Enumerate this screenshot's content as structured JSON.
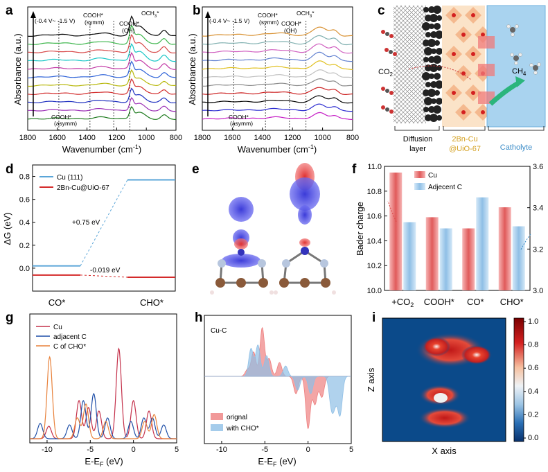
{
  "panel_labels": [
    "a",
    "b",
    "c",
    "d",
    "e",
    "f",
    "g",
    "h",
    "i"
  ],
  "chart_data": [
    {
      "panel": "a",
      "type": "line",
      "xlabel": "Wavenumber (cm",
      "xlabel_sup": "-1",
      "xlabel_end": ")",
      "ylabel": "Absorbance (a.u.)",
      "xlim": [
        1800,
        800
      ],
      "xticks": [
        1800,
        1600,
        1400,
        1200,
        1000,
        800
      ],
      "annotations": {
        "range": "(-0.4 V~ -1.5 V)",
        "cooh_symm_1": "COOH*",
        "cooh_symm_2": "(symm)",
        "cooh_oh_1": "COOH*",
        "cooh_oh_2": "(OH)",
        "och3_1": "OCH",
        "och3_sub": "3",
        "och3_2": "*",
        "cooh_asymm_1": "COOH*",
        "cooh_asymm_2": "(asymm)"
      },
      "marker_lines": [
        1590,
        1380,
        1220,
        1110
      ],
      "series_count": 11,
      "series_colors": [
        "#1d7a1d",
        "#9b2fb5",
        "#1e2fc0",
        "#d22c2c",
        "#b7b70a",
        "#2f63d8",
        "#c23aa6",
        "#18c6c6",
        "#d84a4a",
        "#3bb54a",
        "#000000"
      ]
    },
    {
      "panel": "b",
      "type": "line",
      "xlabel": "Wavenumber (cm",
      "xlabel_sup": "-1",
      "xlabel_end": ")",
      "ylabel": "Absorbance (a.u.)",
      "xlim": [
        1800,
        800
      ],
      "xticks": [
        1800,
        1600,
        1400,
        1200,
        1000,
        800
      ],
      "annotations": {
        "range": "(-0.4 V~ -1.5 V)",
        "cooh_symm_1": "COOH*",
        "cooh_symm_2": "(symm)",
        "cooh_oh_1": "COOH*",
        "cooh_oh_2": "(OH)",
        "och3_1": "OCH",
        "och3_sub": "3",
        "och3_2": "*",
        "cooh_asymm_1": "COOH*",
        "cooh_asymm_2": "(asymm)"
      },
      "marker_lines": [
        1590,
        1380,
        1220,
        1110
      ],
      "series_count": 11,
      "series_colors": [
        "#c51dc5",
        "#2a2ad0",
        "#000000",
        "#cc2020",
        "#8a8a8a",
        "#c0c0c0",
        "#e0c020",
        "#6080d0",
        "#d060c0",
        "#80b0b0",
        "#d89030"
      ]
    },
    {
      "panel": "d",
      "type": "line",
      "ylabel": "ΔG (eV)",
      "ylim": [
        -0.2,
        0.9
      ],
      "yticks": [
        0.0,
        0.2,
        0.4,
        0.6,
        0.8
      ],
      "categories": [
        "CO*",
        "CHO*"
      ],
      "series": [
        {
          "name": "Cu (111)",
          "values": [
            0.02,
            0.77
          ],
          "color": "#5aa5d8"
        },
        {
          "name": "2Bn-Cu@UiO-67",
          "values": [
            -0.06,
            -0.079
          ],
          "color": "#d42a2a"
        }
      ],
      "annotations": {
        "up": "+0.75 eV",
        "down": "-0.019 eV"
      }
    },
    {
      "panel": "f",
      "type": "bar",
      "ylabel": "Bader charge",
      "ylim_left": [
        10.0,
        11.0
      ],
      "yticks_left": [
        10.0,
        10.2,
        10.4,
        10.6,
        10.8,
        11.0
      ],
      "ylim_right": [
        3.0,
        3.6
      ],
      "yticks_right": [
        3.0,
        3.2,
        3.4,
        3.6
      ],
      "categories": [
        "+CO",
        "COOH*",
        "CO*",
        "CHO*"
      ],
      "category_sub": [
        "2",
        "",
        "",
        ""
      ],
      "series": [
        {
          "name": "Cu",
          "values": [
            10.95,
            10.59,
            10.5,
            10.67
          ],
          "color": "#e06a6a",
          "axis": "left"
        },
        {
          "name": "Adjecent C",
          "values": [
            3.33,
            3.3,
            3.45,
            3.31
          ],
          "color": "#8fc0e8",
          "axis": "right"
        }
      ]
    },
    {
      "panel": "g",
      "type": "line",
      "xlabel": "E-E",
      "xlabel_sub": "F",
      "xlabel_end": " (eV)",
      "xlim": [
        -12,
        5
      ],
      "xticks": [
        -10,
        -5,
        0,
        5
      ],
      "series": [
        {
          "name": "Cu",
          "color": "#c4304a"
        },
        {
          "name": "adjacent C",
          "color": "#1f4fa8"
        },
        {
          "name": "C of CHO*",
          "color": "#e8813a"
        }
      ]
    },
    {
      "panel": "h",
      "type": "area",
      "title": "Cu-C",
      "xlabel": "E-E",
      "xlabel_sub": "F",
      "xlabel_end": " (eV)",
      "xlim": [
        -12,
        5
      ],
      "xticks": [
        -10,
        -5,
        0,
        5
      ],
      "series": [
        {
          "name": "orignal",
          "color": "#ee8080"
        },
        {
          "name": "with CHO*",
          "color": "#8fbfe6"
        }
      ]
    },
    {
      "panel": "i",
      "type": "heatmap",
      "xlabel": "X axis",
      "ylabel": "Z axis",
      "colorbar_ticks": [
        1.0,
        0.8,
        0.6,
        0.4,
        0.2,
        0.0
      ]
    }
  ],
  "diagram_c": {
    "co2": "CO",
    "co2_sub": "2",
    "ch4": "CH",
    "ch4_sub": "4",
    "labels": {
      "diffusion_1": "Diffusion",
      "diffusion_2": "layer",
      "cu_1": "2Bn-Cu",
      "cu_2": "@UiO-67",
      "catholyte": "Catholyte"
    }
  }
}
